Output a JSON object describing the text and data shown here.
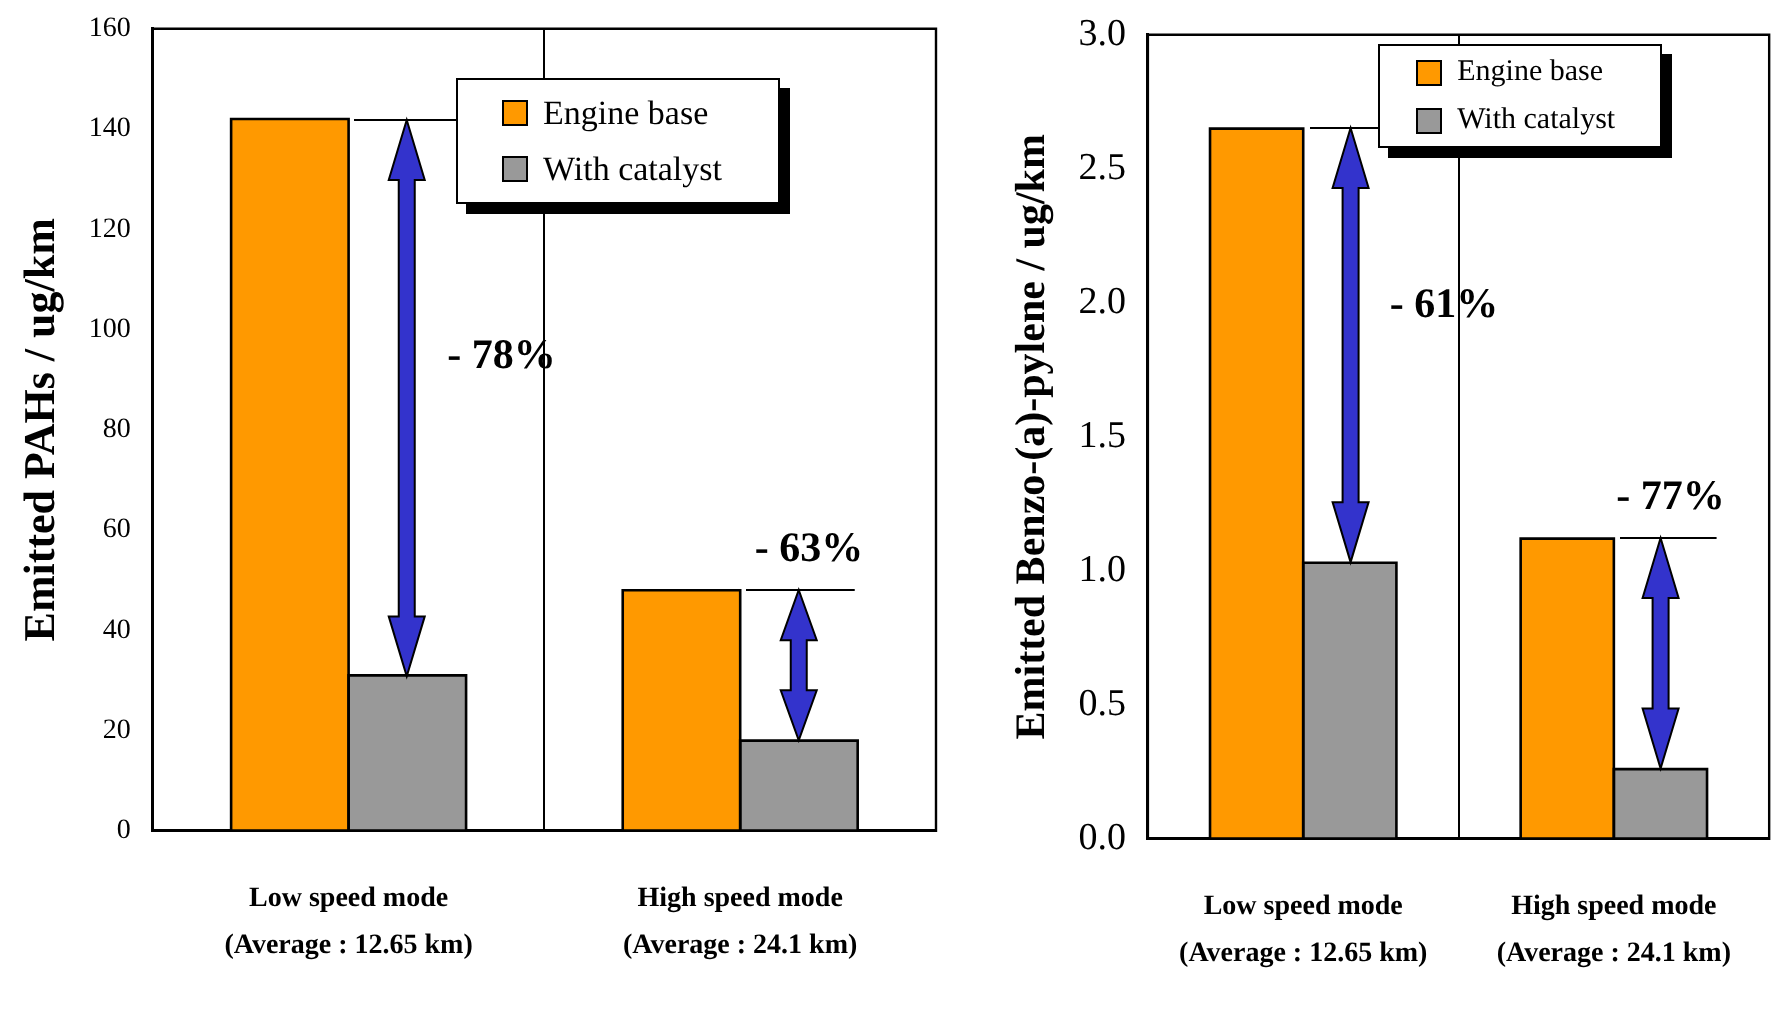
{
  "chart_data": [
    {
      "type": "bar",
      "ylabel": "Emitted PAHs / ug/km",
      "categories": [
        "Low speed mode\n(Average : 12.65 km)",
        "High speed mode\n(Average : 24.1 km)"
      ],
      "series": [
        {
          "name": "Engine base",
          "color": "#ff9900",
          "values": [
            142,
            48
          ]
        },
        {
          "name": "With catalyst",
          "color": "#999999",
          "values": [
            31,
            18
          ]
        }
      ],
      "ylim": [
        0,
        160
      ],
      "yticks": [
        0,
        20,
        40,
        60,
        80,
        100,
        120,
        140,
        160
      ],
      "grid": "x",
      "legend": "top right",
      "annotations": [
        "- 78%",
        "- 63%"
      ]
    },
    {
      "type": "bar",
      "ylabel": "Emitted Benzo-(a)-pylene / ug/km",
      "categories": [
        "Low speed mode\n(Average : 12.65 km)",
        "High speed mode\n(Average : 24.1 km)"
      ],
      "series": [
        {
          "name": "Engine base",
          "color": "#ff9900",
          "values": [
            2.65,
            1.12
          ]
        },
        {
          "name": "With catalyst",
          "color": "#999999",
          "values": [
            1.03,
            0.26
          ]
        }
      ],
      "ylim": [
        0,
        3
      ],
      "yticks": [
        {
          "value": 0,
          "label": "0.0"
        },
        {
          "value": 0.5,
          "label": "0.5"
        },
        {
          "value": 1,
          "label": "1.0"
        },
        {
          "value": 1.5,
          "label": "1.5"
        },
        {
          "value": 2,
          "label": "2.0"
        },
        {
          "value": 2.5,
          "label": "2.5"
        },
        {
          "value": 3,
          "label": "3.0"
        }
      ],
      "grid": "x",
      "legend": "top right",
      "annotations": [
        "- 61%",
        "- 77%"
      ]
    }
  ]
}
